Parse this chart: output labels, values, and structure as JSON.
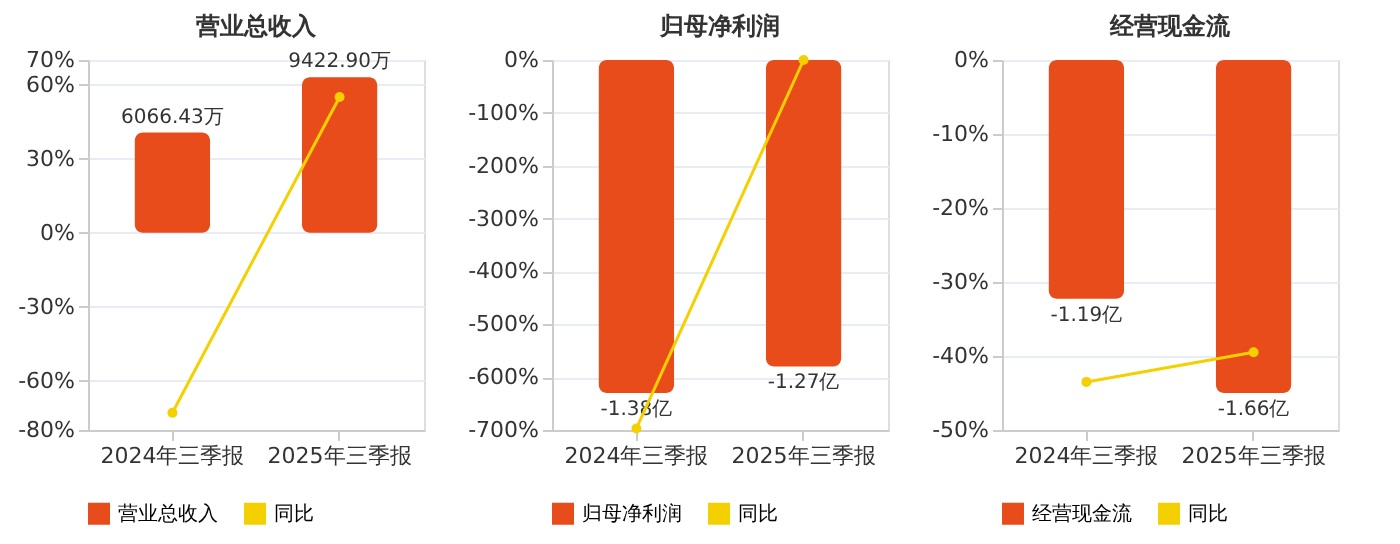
{
  "chart_data": [
    {
      "type": "bar",
      "title": "营业总收入",
      "categories": [
        "2024年三季报",
        "2025年三季报"
      ],
      "ylim": [
        -80,
        70
      ],
      "yticks": [
        {
          "value": 70,
          "label": "70%"
        },
        {
          "value": 60,
          "label": "60%"
        },
        {
          "value": 30,
          "label": "30%"
        },
        {
          "value": 0,
          "label": "0%"
        },
        {
          "value": -30,
          "label": "-30%"
        },
        {
          "value": -60,
          "label": "-60%"
        },
        {
          "value": -80,
          "label": "-80%"
        }
      ],
      "grid": "y",
      "legend": "bottom",
      "marker": "circle",
      "line_style": "solid",
      "series": [
        {
          "name": "营业总收入",
          "axis": "y2",
          "color": "#e84c1b",
          "values": [
            6066.43,
            9422.9
          ],
          "value_labels": [
            "6066.43万",
            "9422.90万"
          ]
        },
        {
          "name": "同比",
          "type": "line",
          "color": "#f5d000",
          "values": [
            -73,
            55
          ]
        }
      ]
    },
    {
      "type": "bar",
      "title": "归母净利润",
      "categories": [
        "2024年三季报",
        "2025年三季报"
      ],
      "ylim": [
        -700,
        0
      ],
      "yticks": [
        {
          "value": 0,
          "label": "0%"
        },
        {
          "value": -100,
          "label": "-100%"
        },
        {
          "value": -200,
          "label": "-200%"
        },
        {
          "value": -300,
          "label": "-300%"
        },
        {
          "value": -400,
          "label": "-400%"
        },
        {
          "value": -500,
          "label": "-500%"
        },
        {
          "value": -600,
          "label": "-600%"
        },
        {
          "value": -700,
          "label": "-700%"
        }
      ],
      "grid": "y",
      "legend": "bottom",
      "marker": "circle",
      "line_style": "solid",
      "series": [
        {
          "name": "归母净利润",
          "axis": "y2",
          "color": "#e84c1b",
          "values": [
            -1.38,
            -1.27
          ],
          "value_labels": [
            "-1.38亿",
            "-1.27亿"
          ]
        },
        {
          "name": "同比",
          "type": "line",
          "color": "#f5d000",
          "values": [
            -697,
            0
          ]
        }
      ]
    },
    {
      "type": "bar",
      "title": "经营现金流",
      "categories": [
        "2024年三季报",
        "2025年三季报"
      ],
      "ylim": [
        -50,
        0
      ],
      "yticks": [
        {
          "value": 0,
          "label": "0%"
        },
        {
          "value": -10,
          "label": "-10%"
        },
        {
          "value": -20,
          "label": "-20%"
        },
        {
          "value": -30,
          "label": "-30%"
        },
        {
          "value": -40,
          "label": "-40%"
        },
        {
          "value": -50,
          "label": "-50%"
        }
      ],
      "grid": "y",
      "legend": "bottom",
      "marker": "circle",
      "line_style": "solid",
      "series": [
        {
          "name": "经营现金流",
          "axis": "y2",
          "color": "#e84c1b",
          "values": [
            -1.19,
            -1.66
          ],
          "value_labels": [
            "-1.19亿",
            "-1.66亿"
          ]
        },
        {
          "name": "同比",
          "type": "line",
          "color": "#f5d000",
          "values": [
            -43.5,
            -39.5
          ]
        }
      ]
    }
  ]
}
